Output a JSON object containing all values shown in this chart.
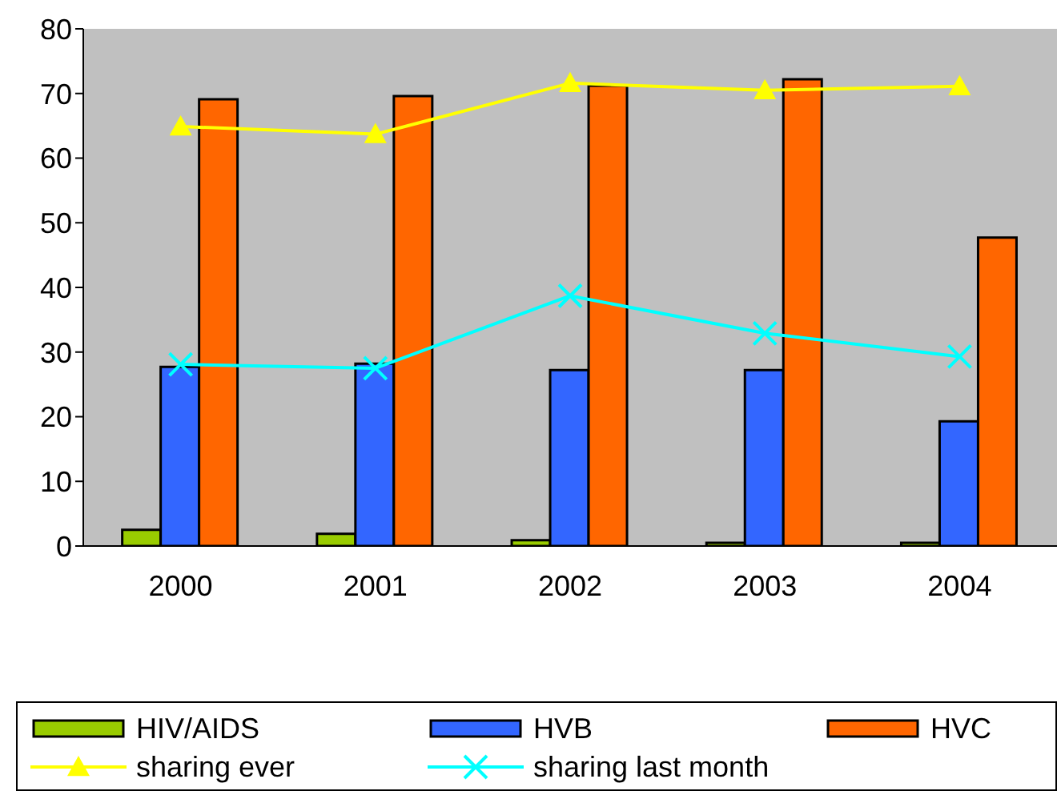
{
  "chart_data": {
    "type": "bar",
    "categories": [
      "2000",
      "2001",
      "2002",
      "2003",
      "2004"
    ],
    "series": [
      {
        "name": "HIV/AIDS",
        "color": "#99cc00",
        "values": [
          2.5,
          1.9,
          0.9,
          0.5,
          0.5
        ]
      },
      {
        "name": "HVB",
        "color": "#3366ff",
        "values": [
          27.7,
          28.2,
          27.2,
          27.2,
          19.3
        ]
      },
      {
        "name": "HVC",
        "color": "#ff6600",
        "values": [
          69.1,
          69.6,
          71.2,
          72.2,
          47.7
        ]
      },
      {
        "name": "sharing ever",
        "type": "line",
        "color": "#ffff00",
        "marker": "triangle",
        "values": [
          64.9,
          63.7,
          71.6,
          70.5,
          71.1
        ]
      },
      {
        "name": "sharing last month",
        "type": "line",
        "color": "#00ffff",
        "marker": "cross",
        "values": [
          28.1,
          27.5,
          38.7,
          32.9,
          29.3
        ]
      }
    ],
    "ylim": [
      0,
      80
    ],
    "yticks": [
      0,
      10,
      20,
      30,
      40,
      50,
      60,
      70,
      80
    ],
    "grid": false,
    "legend": "bottom"
  }
}
